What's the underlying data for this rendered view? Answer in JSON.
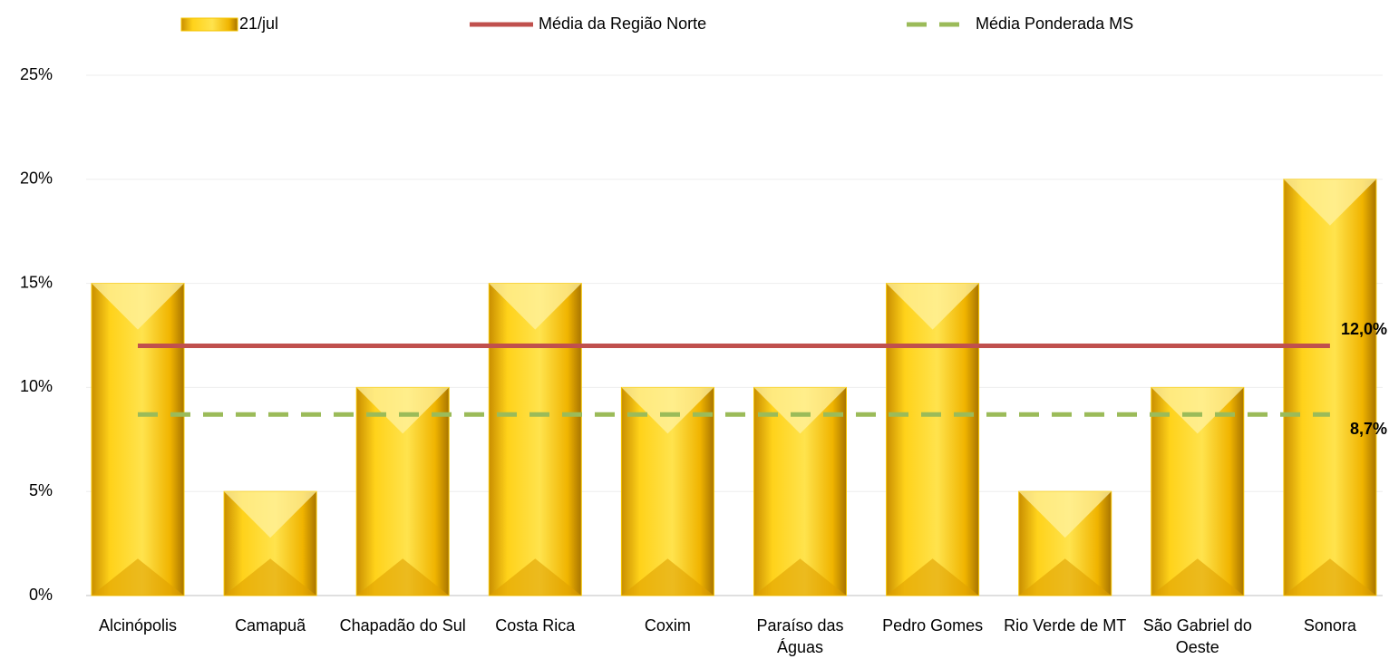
{
  "chart_data": {
    "type": "bar",
    "categories": [
      "Alcinópolis",
      "Camapuã",
      "Chapadão do Sul",
      "Costa Rica",
      "Coxim",
      "Paraíso das Águas",
      "Pedro Gomes",
      "Rio Verde de MT",
      "São Gabriel do Oeste",
      "Sonora"
    ],
    "series": [
      {
        "name": "21/jul",
        "type": "bar",
        "color": "#f5c400",
        "values": [
          15,
          5,
          10,
          15,
          10,
          10,
          15,
          5,
          10,
          20
        ]
      },
      {
        "name": "Média da Região Norte",
        "type": "line",
        "color": "#c0504d",
        "values": [
          12,
          12,
          12,
          12,
          12,
          12,
          12,
          12,
          12,
          12
        ],
        "value_labels": [
          null,
          null,
          null,
          null,
          null,
          null,
          null,
          null,
          null,
          "12,0%"
        ]
      },
      {
        "name": "Média Ponderada MS",
        "type": "line",
        "dashed": true,
        "color": "#9bbb59",
        "values": [
          8.7,
          8.7,
          8.7,
          8.7,
          8.7,
          8.7,
          8.7,
          8.7,
          8.7,
          8.7
        ],
        "value_labels": [
          null,
          null,
          null,
          null,
          null,
          null,
          null,
          null,
          null,
          "8,7%"
        ]
      }
    ],
    "ylim": [
      0,
      25
    ],
    "yticks": [
      {
        "value": 0,
        "label": "0%"
      },
      {
        "value": 5,
        "label": "5%"
      },
      {
        "value": 10,
        "label": "10%"
      },
      {
        "value": 15,
        "label": "15%"
      },
      {
        "value": 20,
        "label": "20%"
      },
      {
        "value": 25,
        "label": "25%"
      }
    ],
    "grid": true
  }
}
